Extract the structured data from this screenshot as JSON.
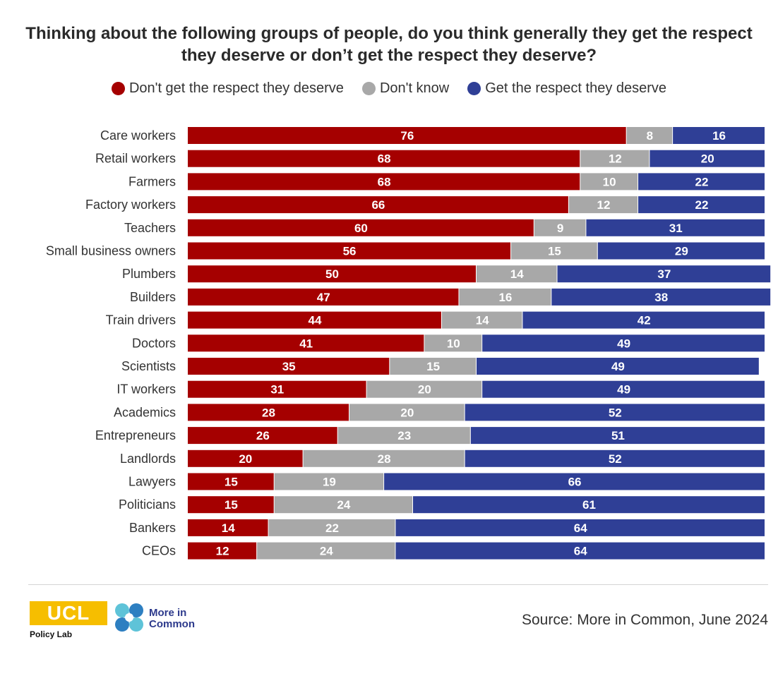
{
  "chart_data": {
    "type": "bar",
    "orientation": "horizontal",
    "stacked": true,
    "title": "Thinking about the following groups of people, do you think generally they get the respect they deserve or don’t get the respect they deserve?",
    "xlim": [
      0,
      100
    ],
    "categories": [
      "Care workers",
      "Retail workers",
      "Farmers",
      "Factory workers",
      "Teachers",
      "Small business owners",
      "Plumbers",
      "Builders",
      "Train drivers",
      "Doctors",
      "Scientists",
      "IT workers",
      "Academics",
      "Entrepreneurs",
      "Landlords",
      "Lawyers",
      "Politicians",
      "Bankers",
      "CEOs"
    ],
    "series": [
      {
        "name": "Don't get the respect they deserve",
        "color": "#a50000",
        "values": [
          76,
          68,
          68,
          66,
          60,
          56,
          50,
          47,
          44,
          41,
          35,
          31,
          28,
          26,
          20,
          15,
          15,
          14,
          12
        ]
      },
      {
        "name": "Don't know",
        "color": "#a8a8a8",
        "values": [
          8,
          12,
          10,
          12,
          9,
          15,
          14,
          16,
          14,
          10,
          15,
          20,
          20,
          23,
          28,
          19,
          24,
          22,
          24
        ]
      },
      {
        "name": "Get the respect they deserve",
        "color": "#2f3f96",
        "values": [
          16,
          20,
          22,
          22,
          31,
          29,
          37,
          38,
          42,
          49,
          49,
          49,
          52,
          51,
          52,
          66,
          61,
          64,
          64
        ]
      }
    ]
  },
  "logos": {
    "ucl": "UCL",
    "ucl_sub": "Policy Lab",
    "mic_line1": "More in",
    "mic_line2": "Common"
  },
  "source": "Source: More in Common, June 2024"
}
